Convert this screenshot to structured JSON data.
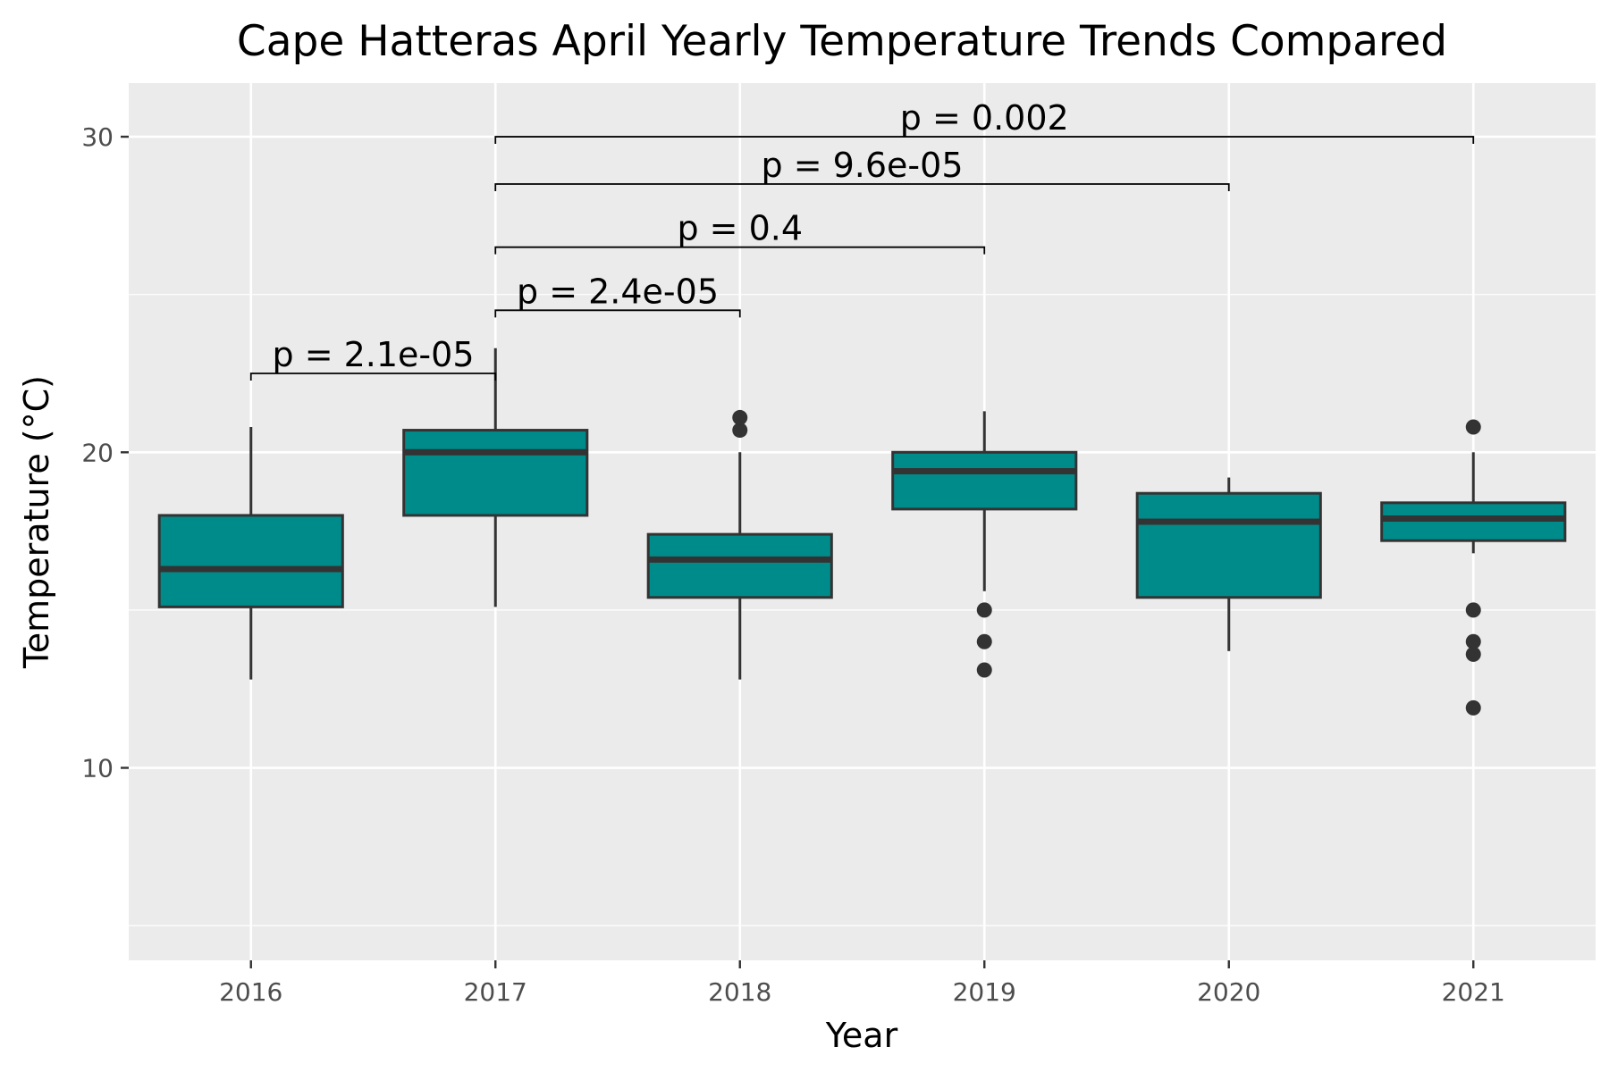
{
  "chart_data": {
    "type": "boxplot",
    "title": "Cape Hatteras April Yearly Temperature Trends Compared",
    "xlabel": "Year",
    "ylabel": "Temperature (°C)",
    "ylim": [
      3.9,
      31.7
    ],
    "yticks": [
      10,
      20,
      30
    ],
    "grid": true,
    "legend": "none",
    "box_fill": "#008b8b",
    "box_stroke": "#333333",
    "panel_bg": "#ebebeb",
    "categories": [
      "2016",
      "2017",
      "2018",
      "2019",
      "2020",
      "2021"
    ],
    "boxes": [
      {
        "x": "2016",
        "whisker_low": 12.8,
        "q1": 15.1,
        "median": 16.3,
        "q3": 18.0,
        "whisker_high": 20.8,
        "outliers": []
      },
      {
        "x": "2017",
        "whisker_low": 15.1,
        "q1": 18.0,
        "median": 20.0,
        "q3": 20.7,
        "whisker_high": 23.3,
        "outliers": []
      },
      {
        "x": "2018",
        "whisker_low": 12.8,
        "q1": 15.4,
        "median": 16.6,
        "q3": 17.4,
        "whisker_high": 20.0,
        "outliers": [
          20.7,
          21.1
        ]
      },
      {
        "x": "2019",
        "whisker_low": 15.6,
        "q1": 18.2,
        "median": 19.4,
        "q3": 20.0,
        "whisker_high": 21.3,
        "outliers": [
          15.0,
          14.0,
          13.1
        ]
      },
      {
        "x": "2020",
        "whisker_low": 13.7,
        "q1": 15.4,
        "median": 17.8,
        "q3": 18.7,
        "whisker_high": 19.2,
        "outliers": []
      },
      {
        "x": "2021",
        "whisker_low": 16.8,
        "q1": 17.2,
        "median": 17.9,
        "q3": 18.4,
        "whisker_high": 20.0,
        "outliers": [
          20.8,
          15.0,
          14.0,
          13.6,
          11.9
        ]
      }
    ],
    "comparisons": [
      {
        "from": "2016",
        "to": "2017",
        "y": 22.5,
        "label": "p = 2.1e-05"
      },
      {
        "from": "2017",
        "to": "2018",
        "y": 24.5,
        "label": "p = 2.4e-05"
      },
      {
        "from": "2017",
        "to": "2019",
        "y": 26.5,
        "label": "p = 0.4"
      },
      {
        "from": "2017",
        "to": "2020",
        "y": 28.5,
        "label": "p = 9.6e-05"
      },
      {
        "from": "2017",
        "to": "2021",
        "y": 30.0,
        "label": "p = 0.002"
      }
    ]
  }
}
